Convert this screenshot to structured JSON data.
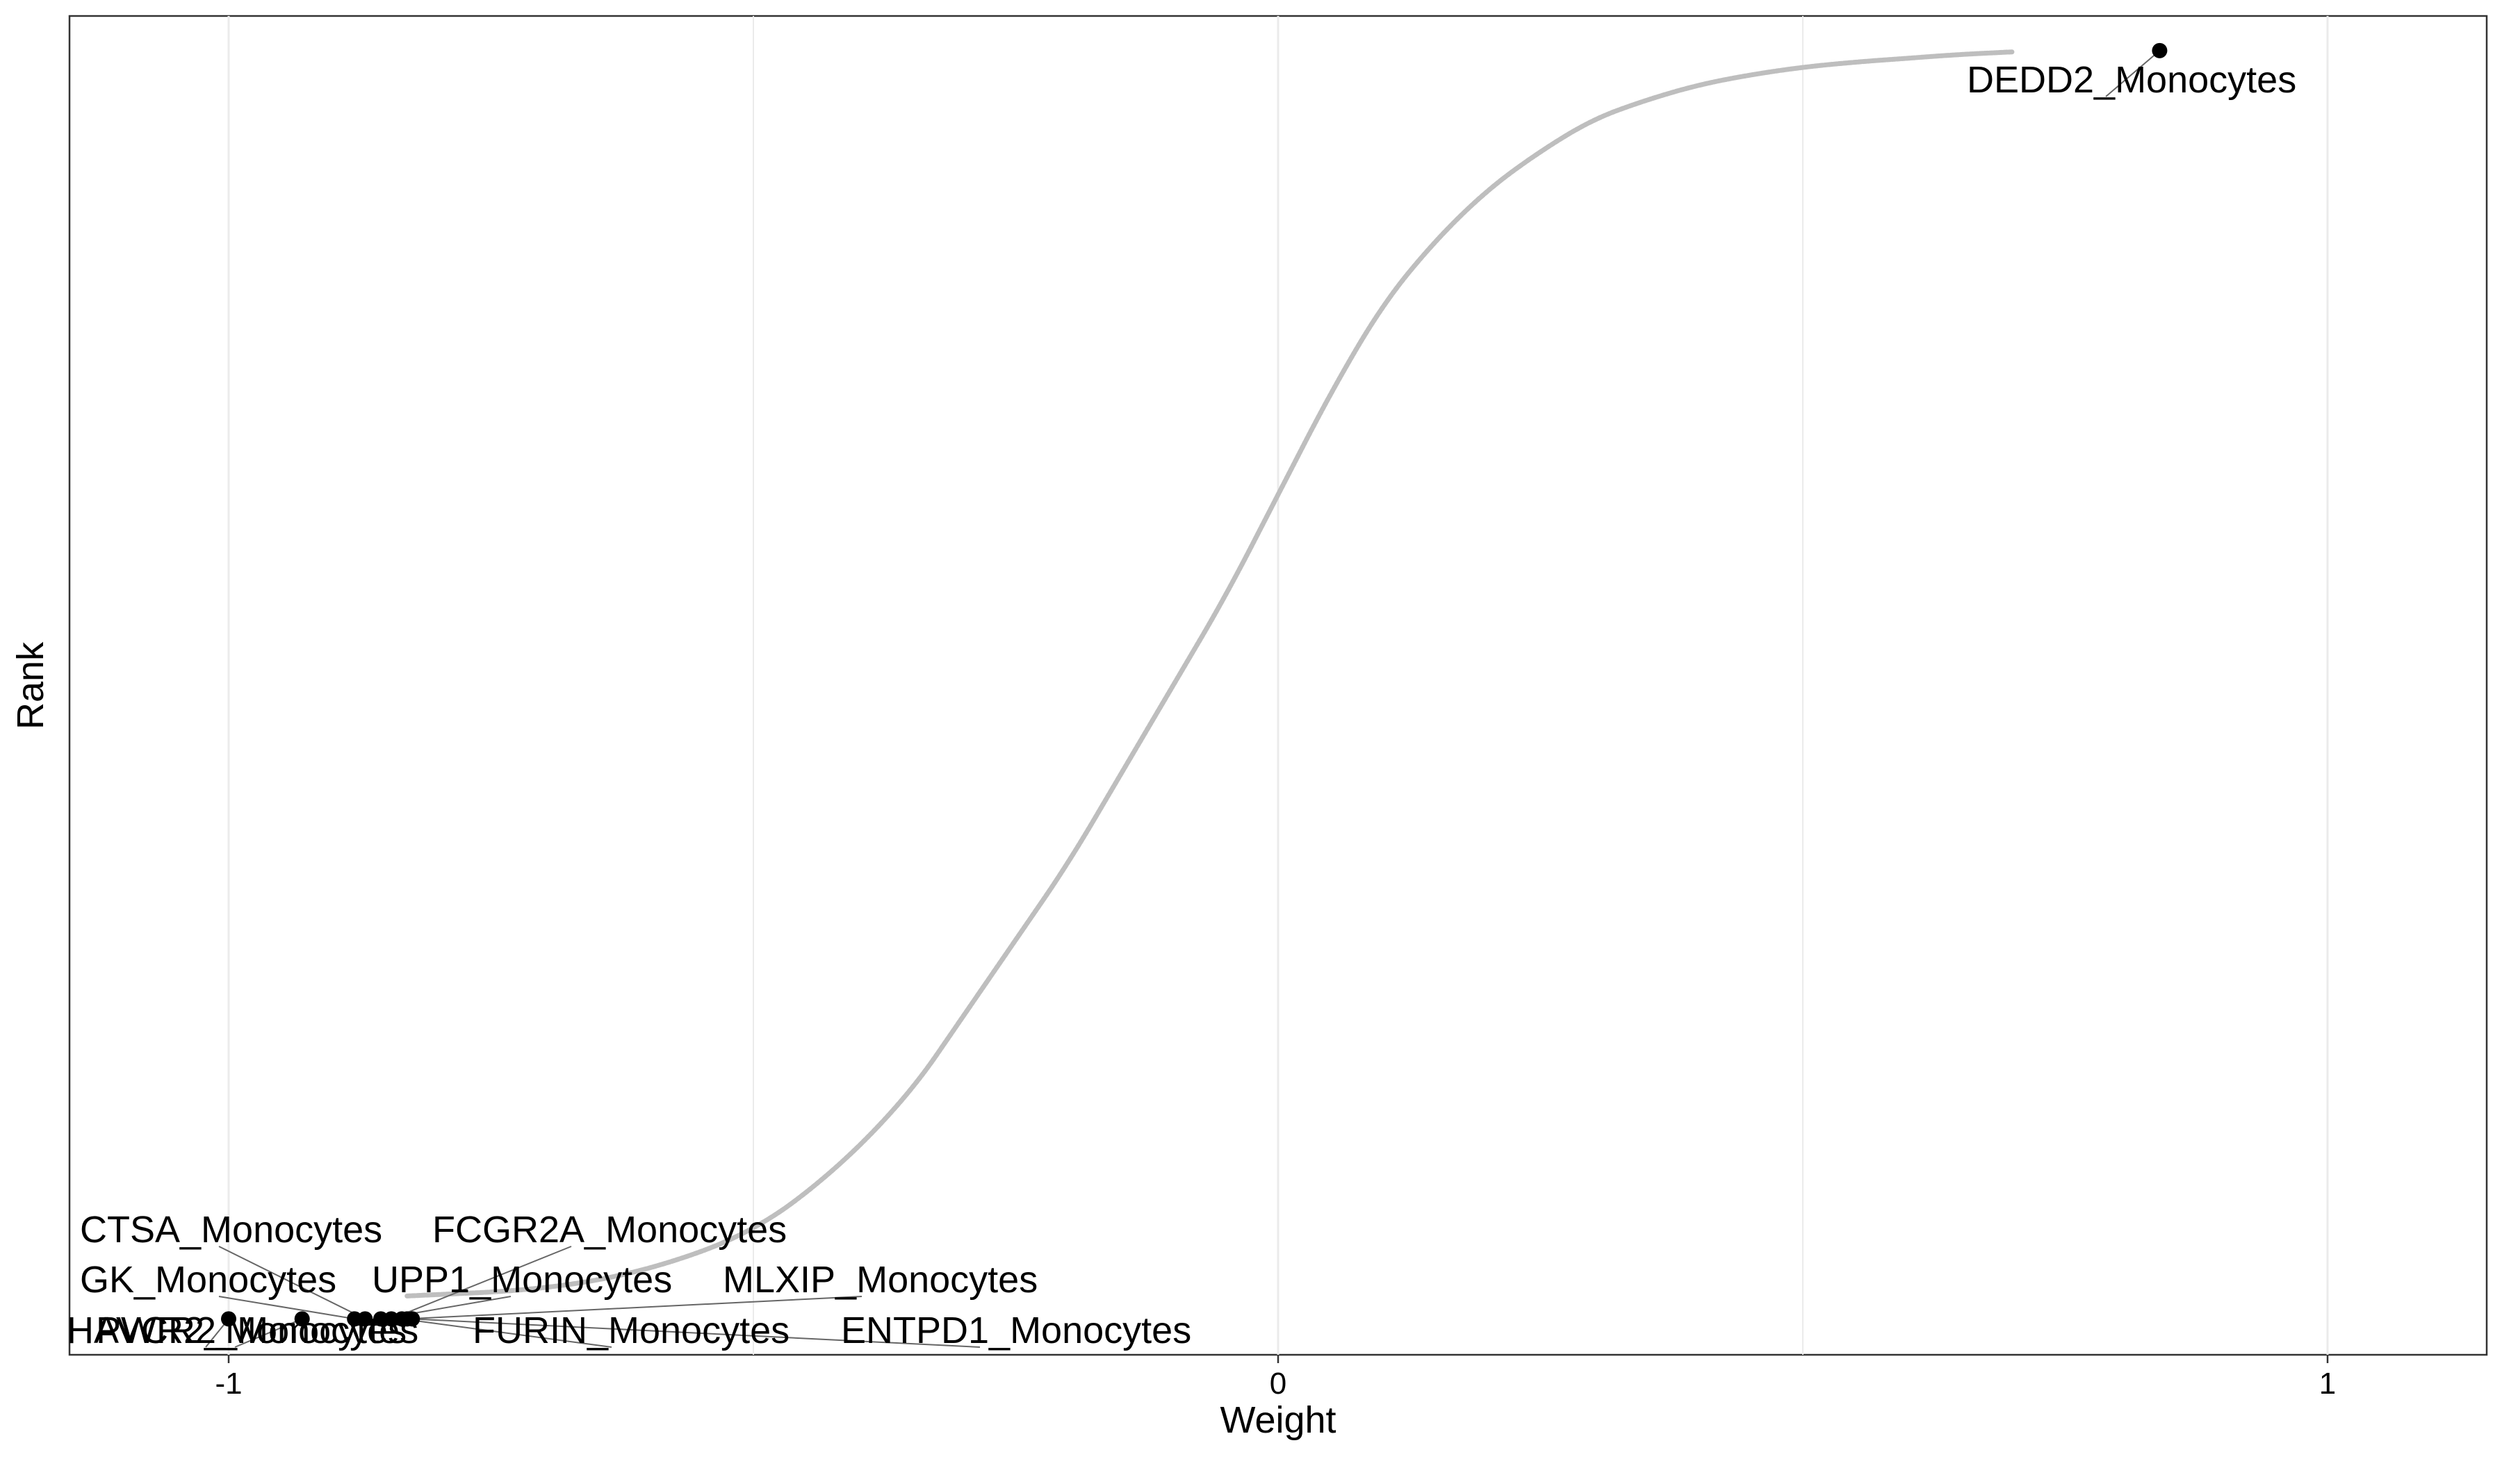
{
  "chart_data": {
    "type": "scatter",
    "title": "",
    "xlabel": "Weight",
    "ylabel": "Rank",
    "xlim": [
      -1.1,
      1.1
    ],
    "ylim": [
      0,
      1
    ],
    "x_ticks": [
      {
        "value": -1,
        "label": "-1"
      },
      {
        "value": 0,
        "label": "0"
      },
      {
        "value": 1,
        "label": "1"
      }
    ],
    "x_minor_gridlines": [
      -0.5,
      0.5
    ],
    "grid": true,
    "y_tick_labels": false,
    "curve_color": "#bebebe",
    "highlight_color": "#000000",
    "curve": {
      "name": "",
      "x": [
        -0.83,
        -0.7,
        -0.6,
        -0.5,
        -0.42,
        -0.35,
        -0.3,
        -0.25,
        -0.2,
        -0.15,
        -0.1,
        -0.05,
        0.0,
        0.05,
        0.1,
        0.15,
        0.2,
        0.25,
        0.3,
        0.35,
        0.4,
        0.45,
        0.5,
        0.55,
        0.6,
        0.65,
        0.7
      ],
      "y": [
        0.02,
        0.025,
        0.04,
        0.07,
        0.12,
        0.18,
        0.24,
        0.3,
        0.36,
        0.43,
        0.5,
        0.57,
        0.65,
        0.73,
        0.8,
        0.85,
        0.89,
        0.92,
        0.945,
        0.96,
        0.972,
        0.98,
        0.986,
        0.99,
        0.993,
        0.996,
        0.998
      ]
    },
    "highlighted_points": [
      {
        "label": "DEDD2_Monocytes",
        "x": 0.84,
        "y": 0.999
      },
      {
        "label": "HAVCR2_Monocytes",
        "x": -1.0,
        "y": 0.002
      },
      {
        "label": "PWR2_Monocytes",
        "x": -0.93,
        "y": 0.002
      },
      {
        "label": "GK_Monocytes",
        "x": -0.88,
        "y": 0.002
      },
      {
        "label": "CTSA_Monocytes",
        "x": -0.87,
        "y": 0.002
      },
      {
        "label": "UPP1_Monocytes",
        "x": -0.855,
        "y": 0.002
      },
      {
        "label": "FCGR2A_Monocytes",
        "x": -0.845,
        "y": 0.002
      },
      {
        "label": "FURIN_Monocytes",
        "x": -0.835,
        "y": 0.002
      },
      {
        "label": "MLXIP_Monocytes",
        "x": -0.83,
        "y": 0.002
      },
      {
        "label": "ENTPD1_Monocytes",
        "x": -0.825,
        "y": 0.002
      }
    ]
  }
}
